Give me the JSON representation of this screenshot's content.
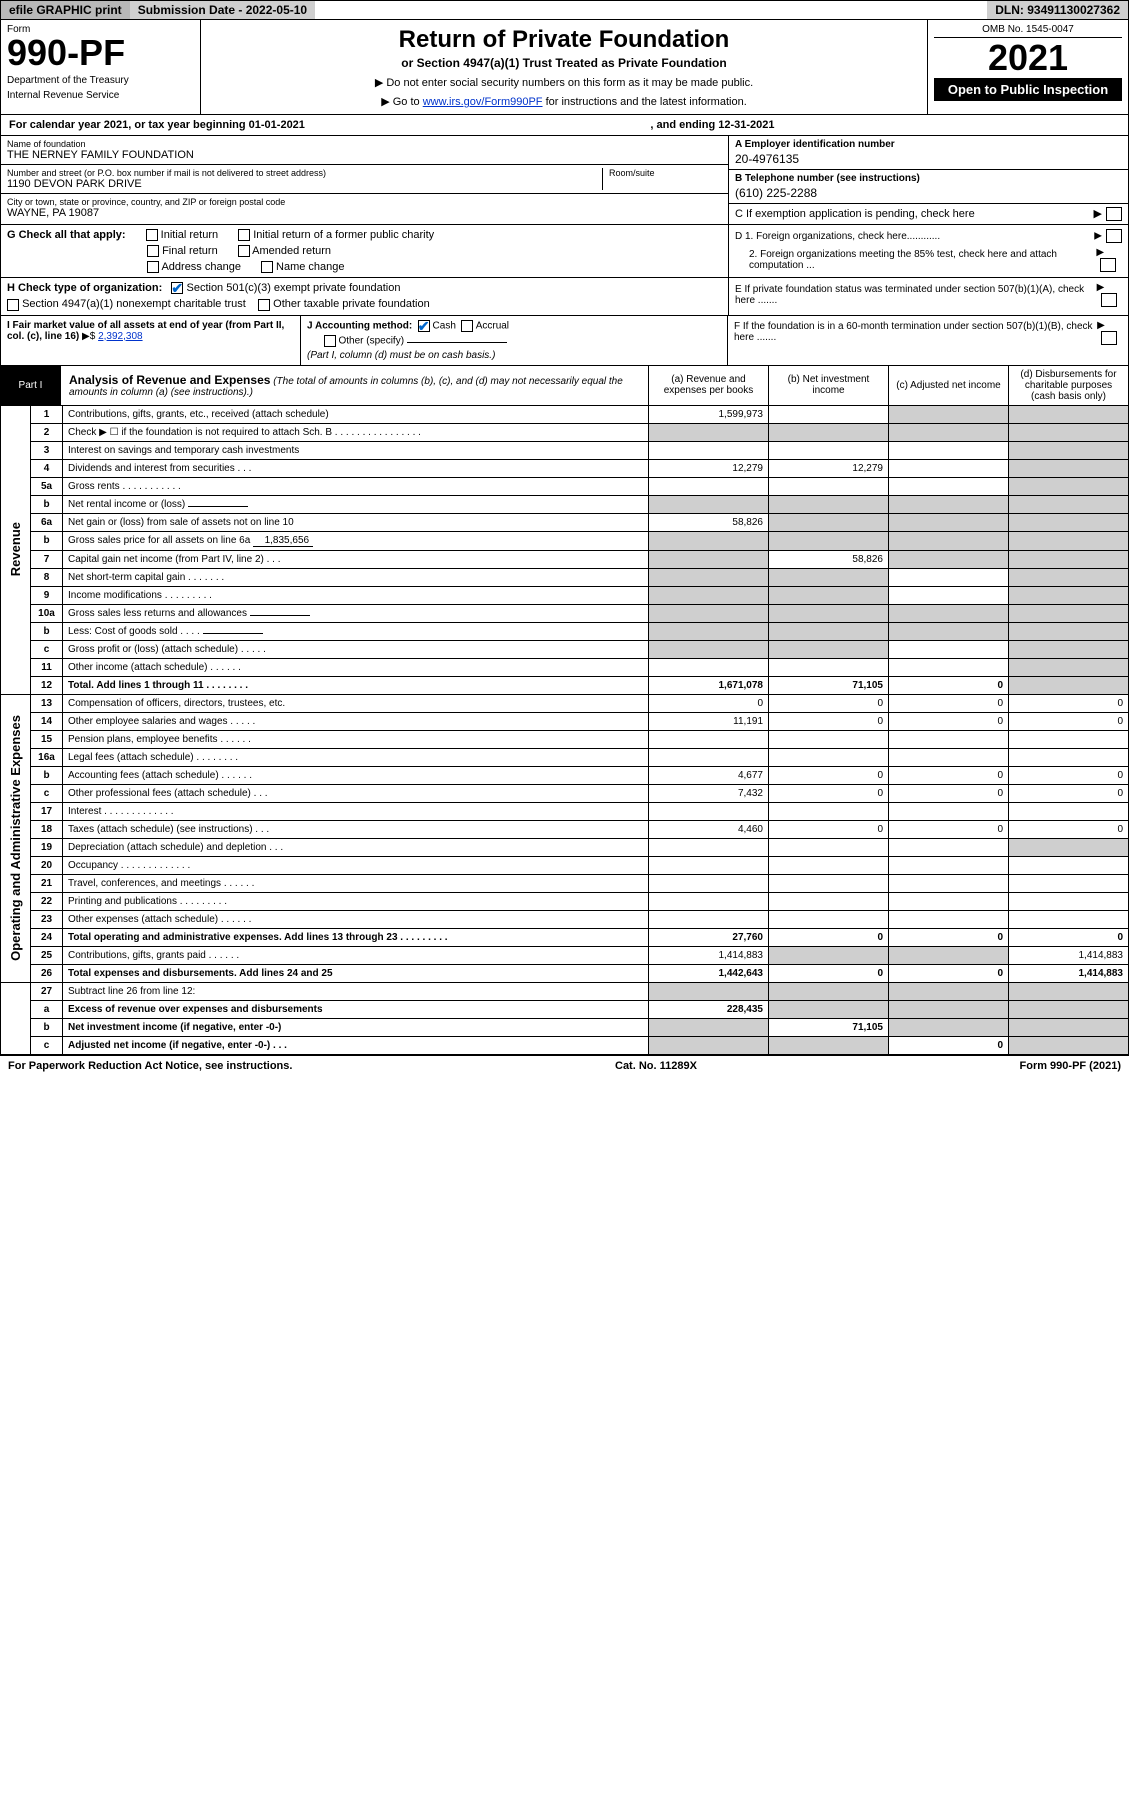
{
  "colors": {
    "link": "#0033cc",
    "check": "#0066cc",
    "shade": "#cfcfcf",
    "black": "#000000",
    "white": "#ffffff",
    "topbar_dark": "#b8b8b8"
  },
  "topbar": {
    "efile": "efile GRAPHIC print",
    "submission": "Submission Date - 2022-05-10",
    "dln": "DLN: 93491130027362"
  },
  "header": {
    "form_label": "Form",
    "form_number": "990-PF",
    "dept1": "Department of the Treasury",
    "dept2": "Internal Revenue Service",
    "title": "Return of Private Foundation",
    "subtitle": "or Section 4947(a)(1) Trust Treated as Private Foundation",
    "inst1": "▶ Do not enter social security numbers on this form as it may be made public.",
    "inst2_pre": "▶ Go to ",
    "inst2_link": "www.irs.gov/Form990PF",
    "inst2_post": " for instructions and the latest information.",
    "omb": "OMB No. 1545-0047",
    "year": "2021",
    "open": "Open to Public Inspection"
  },
  "calyear": {
    "prefix": "For calendar year 2021, or tax year beginning 01-01-2021",
    "middle": ", and ending 12-31-2021"
  },
  "entity": {
    "name_label": "Name of foundation",
    "name": "THE NERNEY FAMILY FOUNDATION",
    "addr_label": "Number and street (or P.O. box number if mail is not delivered to street address)",
    "addr": "1190 DEVON PARK DRIVE",
    "room_label": "Room/suite",
    "city_label": "City or town, state or province, country, and ZIP or foreign postal code",
    "city": "WAYNE, PA  19087",
    "a_label": "A Employer identification number",
    "a_val": "20-4976135",
    "b_label": "B Telephone number (see instructions)",
    "b_val": "(610) 225-2288",
    "c_label": "C If exemption application is pending, check here"
  },
  "g_section": {
    "label": "G Check all that apply:",
    "opts": [
      "Initial return",
      "Initial return of a former public charity",
      "Final return",
      "Amended return",
      "Address change",
      "Name change"
    ]
  },
  "d_section": {
    "d1": "D 1. Foreign organizations, check here............",
    "d2": "2. Foreign organizations meeting the 85% test, check here and attach computation ..."
  },
  "h_section": {
    "label": "H Check type of organization:",
    "opt1": "Section 501(c)(3) exempt private foundation",
    "opt2": "Section 4947(a)(1) nonexempt charitable trust",
    "opt3": "Other taxable private foundation"
  },
  "e_section": "E  If private foundation status was terminated under section 507(b)(1)(A), check here .......",
  "i_section": {
    "label": "I Fair market value of all assets at end of year (from Part II, col. (c), line 16)",
    "arrow": "▶$",
    "value": "2,392,308"
  },
  "j_section": {
    "label": "J Accounting method:",
    "cash": "Cash",
    "accrual": "Accrual",
    "other": "Other (specify)",
    "note": "(Part I, column (d) must be on cash basis.)"
  },
  "f_section": "F  If the foundation is in a 60-month termination under section 507(b)(1)(B), check here .......",
  "part1": {
    "label": "Part I",
    "title": "Analysis of Revenue and Expenses",
    "note": "(The total of amounts in columns (b), (c), and (d) may not necessarily equal the amounts in column (a) (see instructions).)",
    "col_a": "(a)  Revenue and expenses per books",
    "col_b": "(b)  Net investment income",
    "col_c": "(c)  Adjusted net income",
    "col_d": "(d)  Disbursements for charitable purposes (cash basis only)"
  },
  "sides": {
    "revenue": "Revenue",
    "expenses": "Operating and Administrative Expenses"
  },
  "rows": [
    {
      "n": "1",
      "desc": "Contributions, gifts, grants, etc., received (attach schedule)",
      "a": "1,599,973",
      "b": "",
      "c": "shade",
      "d": "shade"
    },
    {
      "n": "2",
      "desc": "Check ▶ ☐ if the foundation is not required to attach Sch. B    .  .  .  .  .  .  .  .  .  .  .  .  .  .  .  .",
      "a": "shade",
      "b": "shade",
      "c": "shade",
      "d": "shade"
    },
    {
      "n": "3",
      "desc": "Interest on savings and temporary cash investments",
      "a": "",
      "b": "",
      "c": "",
      "d": "shade"
    },
    {
      "n": "4",
      "desc": "Dividends and interest from securities   .   .   .",
      "a": "12,279",
      "b": "12,279",
      "c": "",
      "d": "shade"
    },
    {
      "n": "5a",
      "desc": "Gross rents    .   .   .   .   .   .   .   .   .   .   .",
      "a": "",
      "b": "",
      "c": "",
      "d": "shade"
    },
    {
      "n": "b",
      "desc": "Net rental income or (loss)",
      "a": "shade",
      "b": "shade",
      "c": "shade",
      "d": "shade",
      "inline": ""
    },
    {
      "n": "6a",
      "desc": "Net gain or (loss) from sale of assets not on line 10",
      "a": "58,826",
      "b": "shade",
      "c": "shade",
      "d": "shade"
    },
    {
      "n": "b",
      "desc": "Gross sales price for all assets on line 6a",
      "a": "shade",
      "b": "shade",
      "c": "shade",
      "d": "shade",
      "inline": "1,835,656"
    },
    {
      "n": "7",
      "desc": "Capital gain net income (from Part IV, line 2)   .   .   .",
      "a": "shade",
      "b": "58,826",
      "c": "shade",
      "d": "shade"
    },
    {
      "n": "8",
      "desc": "Net short-term capital gain   .   .   .   .   .   .   .",
      "a": "shade",
      "b": "shade",
      "c": "",
      "d": "shade"
    },
    {
      "n": "9",
      "desc": "Income modifications  .   .   .   .   .   .   .   .   .",
      "a": "shade",
      "b": "shade",
      "c": "",
      "d": "shade"
    },
    {
      "n": "10a",
      "desc": "Gross sales less returns and allowances",
      "a": "shade",
      "b": "shade",
      "c": "shade",
      "d": "shade",
      "inline": ""
    },
    {
      "n": "b",
      "desc": "Less: Cost of goods sold    .   .   .   .",
      "a": "shade",
      "b": "shade",
      "c": "shade",
      "d": "shade",
      "inline": ""
    },
    {
      "n": "c",
      "desc": "Gross profit or (loss) (attach schedule)    .   .   .   .   .",
      "a": "shade",
      "b": "shade",
      "c": "",
      "d": "shade"
    },
    {
      "n": "11",
      "desc": "Other income (attach schedule)    .   .   .   .   .   .",
      "a": "",
      "b": "",
      "c": "",
      "d": "shade"
    },
    {
      "n": "12",
      "desc": "Total. Add lines 1 through 11   .   .   .   .   .   .   .   .",
      "a": "1,671,078",
      "b": "71,105",
      "c": "0",
      "d": "shade",
      "bold": true
    }
  ],
  "exp_rows": [
    {
      "n": "13",
      "desc": "Compensation of officers, directors, trustees, etc.",
      "a": "0",
      "b": "0",
      "c": "0",
      "d": "0"
    },
    {
      "n": "14",
      "desc": "Other employee salaries and wages    .   .   .   .   .",
      "a": "11,191",
      "b": "0",
      "c": "0",
      "d": "0"
    },
    {
      "n": "15",
      "desc": "Pension plans, employee benefits  .   .   .   .   .   .",
      "a": "",
      "b": "",
      "c": "",
      "d": ""
    },
    {
      "n": "16a",
      "desc": "Legal fees (attach schedule) .   .   .   .   .   .   .   .",
      "a": "",
      "b": "",
      "c": "",
      "d": ""
    },
    {
      "n": "b",
      "desc": "Accounting fees (attach schedule) .   .   .   .   .   .",
      "a": "4,677",
      "b": "0",
      "c": "0",
      "d": "0"
    },
    {
      "n": "c",
      "desc": "Other professional fees (attach schedule)    .   .   .",
      "a": "7,432",
      "b": "0",
      "c": "0",
      "d": "0"
    },
    {
      "n": "17",
      "desc": "Interest  .   .   .   .   .   .   .   .   .   .   .   .   .",
      "a": "",
      "b": "",
      "c": "",
      "d": ""
    },
    {
      "n": "18",
      "desc": "Taxes (attach schedule) (see instructions)    .   .   .",
      "a": "4,460",
      "b": "0",
      "c": "0",
      "d": "0"
    },
    {
      "n": "19",
      "desc": "Depreciation (attach schedule) and depletion   .   .   .",
      "a": "",
      "b": "",
      "c": "",
      "d": "shade"
    },
    {
      "n": "20",
      "desc": "Occupancy .   .   .   .   .   .   .   .   .   .   .   .   .",
      "a": "",
      "b": "",
      "c": "",
      "d": ""
    },
    {
      "n": "21",
      "desc": "Travel, conferences, and meetings .   .   .   .   .   .",
      "a": "",
      "b": "",
      "c": "",
      "d": ""
    },
    {
      "n": "22",
      "desc": "Printing and publications .   .   .   .   .   .   .   .   .",
      "a": "",
      "b": "",
      "c": "",
      "d": ""
    },
    {
      "n": "23",
      "desc": "Other expenses (attach schedule)  .   .   .   .   .   .",
      "a": "",
      "b": "",
      "c": "",
      "d": ""
    },
    {
      "n": "24",
      "desc": "Total operating and administrative expenses. Add lines 13 through 23   .   .   .   .   .   .   .   .   .",
      "a": "27,760",
      "b": "0",
      "c": "0",
      "d": "0",
      "bold": true
    },
    {
      "n": "25",
      "desc": "Contributions, gifts, grants paid     .   .   .   .   .   .",
      "a": "1,414,883",
      "b": "shade",
      "c": "shade",
      "d": "1,414,883"
    },
    {
      "n": "26",
      "desc": "Total expenses and disbursements. Add lines 24 and 25",
      "a": "1,442,643",
      "b": "0",
      "c": "0",
      "d": "1,414,883",
      "bold": true
    }
  ],
  "bottom_rows": [
    {
      "n": "27",
      "desc": "Subtract line 26 from line 12:",
      "a": "shade",
      "b": "shade",
      "c": "shade",
      "d": "shade"
    },
    {
      "n": "a",
      "desc": "Excess of revenue over expenses and disbursements",
      "a": "228,435",
      "b": "shade",
      "c": "shade",
      "d": "shade",
      "bold": true
    },
    {
      "n": "b",
      "desc": "Net investment income (if negative, enter -0-)",
      "a": "shade",
      "b": "71,105",
      "c": "shade",
      "d": "shade",
      "bold": true
    },
    {
      "n": "c",
      "desc": "Adjusted net income (if negative, enter -0-)   .   .   .",
      "a": "shade",
      "b": "shade",
      "c": "0",
      "d": "shade",
      "bold": true
    }
  ],
  "footer": {
    "left": "For Paperwork Reduction Act Notice, see instructions.",
    "center": "Cat. No. 11289X",
    "right": "Form 990-PF (2021)"
  }
}
